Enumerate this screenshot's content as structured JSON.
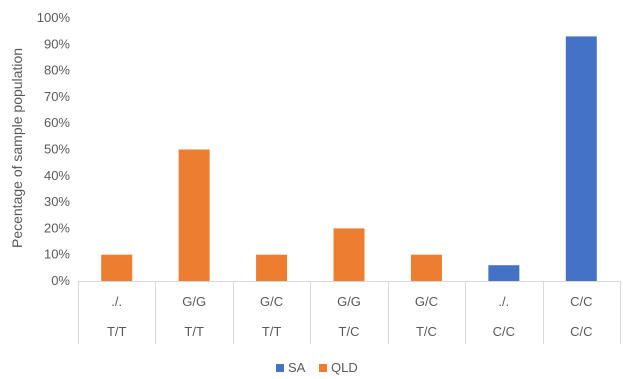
{
  "chart_data": {
    "type": "bar",
    "ylabel": "Pecentage of sample population",
    "ylim": [
      0,
      100
    ],
    "yticks": [
      0,
      10,
      20,
      30,
      40,
      50,
      60,
      70,
      80,
      90,
      100
    ],
    "ytick_suffix": "%",
    "grid": false,
    "legend_position": "bottom",
    "categories": [
      {
        "row1": "./.",
        "row2": "T/T"
      },
      {
        "row1": "G/G",
        "row2": "T/T"
      },
      {
        "row1": "G/C",
        "row2": "T/T"
      },
      {
        "row1": "G/G",
        "row2": "T/C"
      },
      {
        "row1": "G/C",
        "row2": "T/C"
      },
      {
        "row1": "./.",
        "row2": "C/C"
      },
      {
        "row1": "C/C",
        "row2": "C/C"
      }
    ],
    "series": [
      {
        "name": "SA",
        "color": "#4472C4",
        "values": [
          null,
          null,
          null,
          null,
          null,
          6,
          93
        ]
      },
      {
        "name": "QLD",
        "color": "#ED7D31",
        "values": [
          10,
          50,
          10,
          20,
          10,
          null,
          null
        ]
      }
    ]
  }
}
